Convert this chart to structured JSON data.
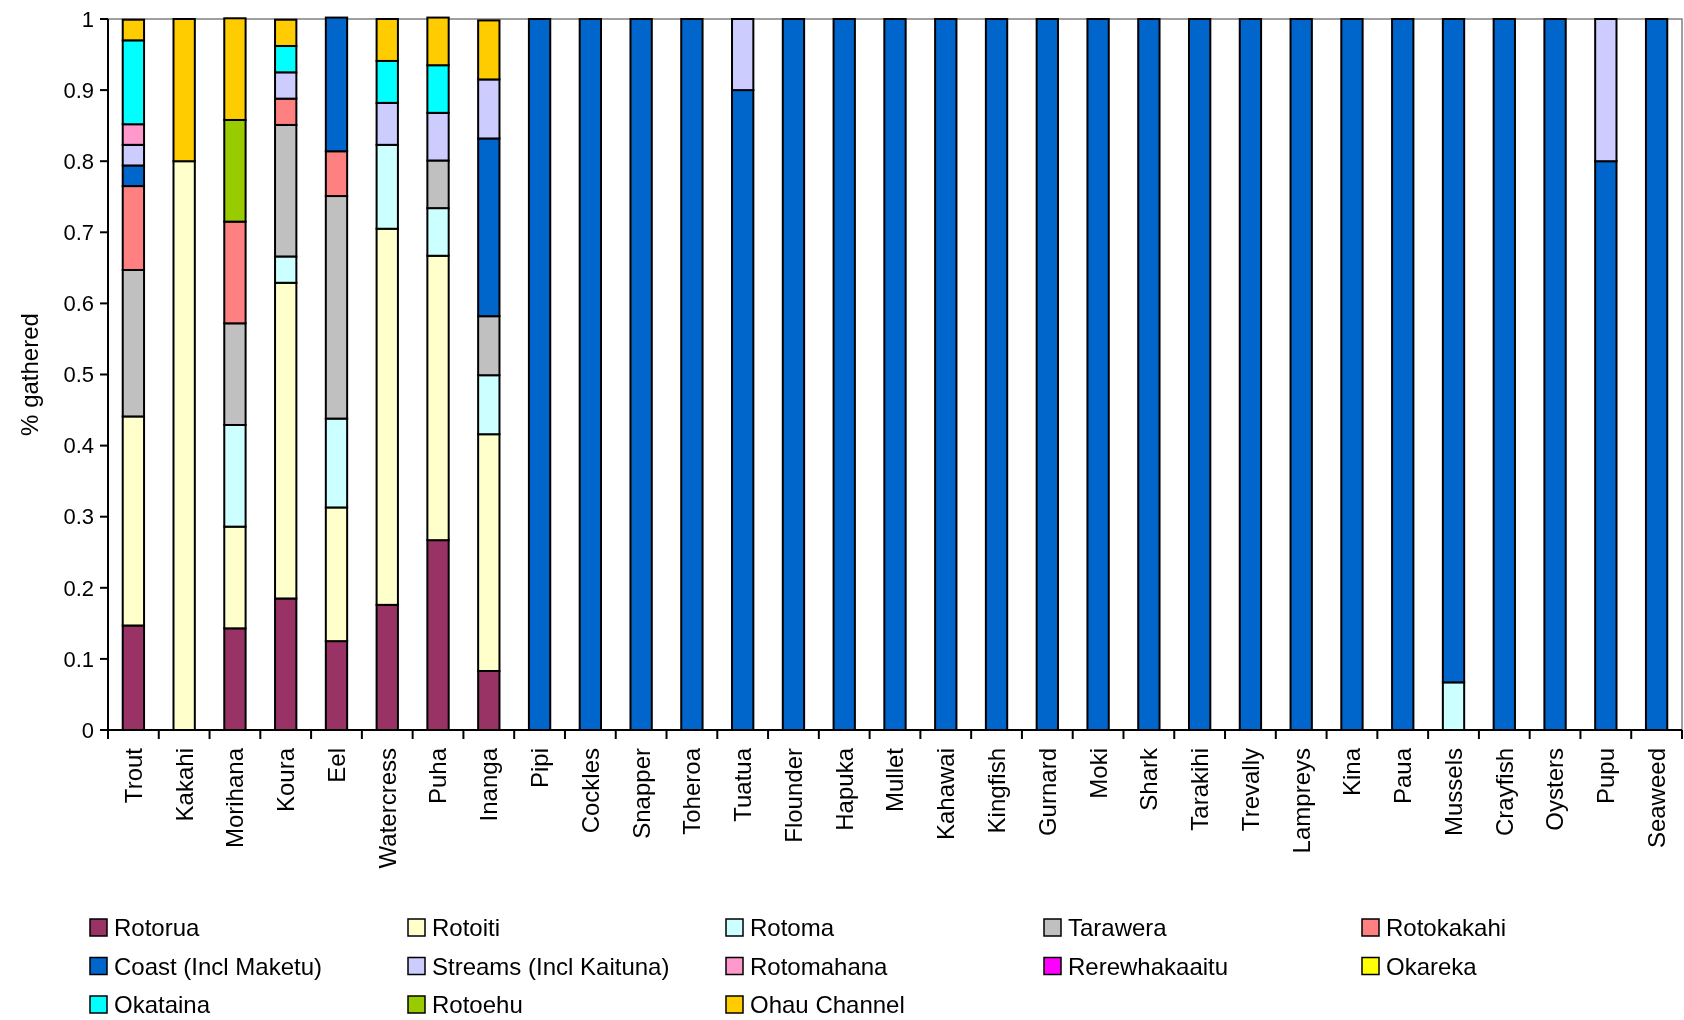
{
  "chart_data": {
    "type": "bar",
    "stacked": true,
    "ylabel": "% gathered",
    "ylim": [
      0,
      1
    ],
    "yticks": [
      0,
      0.1,
      0.2,
      0.3,
      0.4,
      0.5,
      0.6,
      0.7,
      0.8,
      0.9,
      1
    ],
    "grid": false,
    "legend": "bottom",
    "categories": [
      "Trout",
      "Kakahi",
      "Morihana",
      "Koura",
      "Eel",
      "Watercress",
      "Puha",
      "Inanga",
      "Pipi",
      "Cockles",
      "Snapper",
      "Toheroa",
      "Tuatua",
      "Flounder",
      "Hapuka",
      "Mullet",
      "Kahawai",
      "Kingfish",
      "Gurnard",
      "Moki",
      "Shark",
      "Tarakihi",
      "Trevally",
      "Lampreys",
      "Kina",
      "Paua",
      "Mussels",
      "Crayfish",
      "Oysters",
      "Pupu",
      "Seaweed"
    ],
    "series": [
      {
        "name": "Rotorua",
        "color": "#993366",
        "values": [
          0.147,
          0,
          0.143,
          0.185,
          0.125,
          0.176,
          0.267,
          0.083,
          0,
          0,
          0,
          0,
          0,
          0,
          0,
          0,
          0,
          0,
          0,
          0,
          0,
          0,
          0,
          0,
          0,
          0,
          0,
          0,
          0,
          0,
          0
        ]
      },
      {
        "name": "Rotoiti",
        "color": "#ffffcc",
        "values": [
          0.294,
          0.8,
          0.143,
          0.444,
          0.188,
          0.529,
          0.4,
          0.333,
          0,
          0,
          0,
          0,
          0,
          0,
          0,
          0,
          0,
          0,
          0,
          0,
          0,
          0,
          0,
          0,
          0,
          0,
          0,
          0,
          0,
          0,
          0
        ]
      },
      {
        "name": "Rotoma",
        "color": "#ccffff",
        "values": [
          0,
          0,
          0.143,
          0.037,
          0.125,
          0.118,
          0.067,
          0.083,
          0,
          0,
          0,
          0,
          0,
          0,
          0,
          0,
          0,
          0,
          0,
          0,
          0,
          0,
          0,
          0,
          0,
          0,
          0.067,
          0,
          0,
          0,
          0
        ]
      },
      {
        "name": "Tarawera",
        "color": "#c0c0c0",
        "values": [
          0.206,
          0,
          0.143,
          0.185,
          0.313,
          0,
          0.067,
          0.083,
          0,
          0,
          0,
          0,
          0,
          0,
          0,
          0,
          0,
          0,
          0,
          0,
          0,
          0,
          0,
          0,
          0,
          0,
          0,
          0,
          0,
          0,
          0
        ]
      },
      {
        "name": "Rotokakahi",
        "color": "#ff8080",
        "values": [
          0.118,
          0,
          0.143,
          0.037,
          0.063,
          0,
          0,
          0,
          0,
          0,
          0,
          0,
          0,
          0,
          0,
          0,
          0,
          0,
          0,
          0,
          0,
          0,
          0,
          0,
          0,
          0,
          0,
          0,
          0,
          0,
          0
        ]
      },
      {
        "name": "Coast (Incl Maketu)",
        "color": "#0066cc",
        "values": [
          0.029,
          0,
          0,
          0,
          0.188,
          0,
          0,
          0.25,
          1,
          1,
          1,
          1,
          0.9,
          1,
          1,
          1,
          1,
          1,
          1,
          1,
          1,
          1,
          1,
          1,
          1,
          1,
          0.933,
          1,
          1,
          0.8,
          1
        ]
      },
      {
        "name": "Streams (Incl Kaituna)",
        "color": "#ccccff",
        "values": [
          0.029,
          0,
          0,
          0.037,
          0,
          0.059,
          0.067,
          0.083,
          0,
          0,
          0,
          0,
          0.1,
          0,
          0,
          0,
          0,
          0,
          0,
          0,
          0,
          0,
          0,
          0,
          0,
          0,
          0,
          0,
          0,
          0.2,
          0
        ]
      },
      {
        "name": "Rotomahana",
        "color": "#ff99cc",
        "values": [
          0.029,
          0,
          0,
          0,
          0,
          0,
          0,
          0,
          0,
          0,
          0,
          0,
          0,
          0,
          0,
          0,
          0,
          0,
          0,
          0,
          0,
          0,
          0,
          0,
          0,
          0,
          0,
          0,
          0,
          0,
          0
        ]
      },
      {
        "name": "Rerewhakaaitu",
        "color": "#ff00ff",
        "values": [
          0,
          0,
          0,
          0,
          0,
          0,
          0,
          0,
          0,
          0,
          0,
          0,
          0,
          0,
          0,
          0,
          0,
          0,
          0,
          0,
          0,
          0,
          0,
          0,
          0,
          0,
          0,
          0,
          0,
          0,
          0
        ]
      },
      {
        "name": "Okareka",
        "color": "#ffff00",
        "values": [
          0,
          0,
          0,
          0,
          0,
          0,
          0,
          0,
          0,
          0,
          0,
          0,
          0,
          0,
          0,
          0,
          0,
          0,
          0,
          0,
          0,
          0,
          0,
          0,
          0,
          0,
          0,
          0,
          0,
          0,
          0
        ]
      },
      {
        "name": "Okataina",
        "color": "#00ffff",
        "values": [
          0.118,
          0,
          0,
          0.037,
          0,
          0.059,
          0.067,
          0,
          0,
          0,
          0,
          0,
          0,
          0,
          0,
          0,
          0,
          0,
          0,
          0,
          0,
          0,
          0,
          0,
          0,
          0,
          0,
          0,
          0,
          0,
          0
        ]
      },
      {
        "name": "Rotoehu",
        "color": "#99cc00",
        "values": [
          0,
          0,
          0.143,
          0,
          0,
          0,
          0,
          0,
          0,
          0,
          0,
          0,
          0,
          0,
          0,
          0,
          0,
          0,
          0,
          0,
          0,
          0,
          0,
          0,
          0,
          0,
          0,
          0,
          0,
          0,
          0
        ]
      },
      {
        "name": "Ohau Channel",
        "color": "#ffcc00",
        "values": [
          0.029,
          0.2,
          0.143,
          0.037,
          0,
          0.059,
          0.067,
          0.083,
          0,
          0,
          0,
          0,
          0,
          0,
          0,
          0,
          0,
          0,
          0,
          0,
          0,
          0,
          0,
          0,
          0,
          0,
          0,
          0,
          0,
          0,
          0
        ]
      }
    ]
  }
}
